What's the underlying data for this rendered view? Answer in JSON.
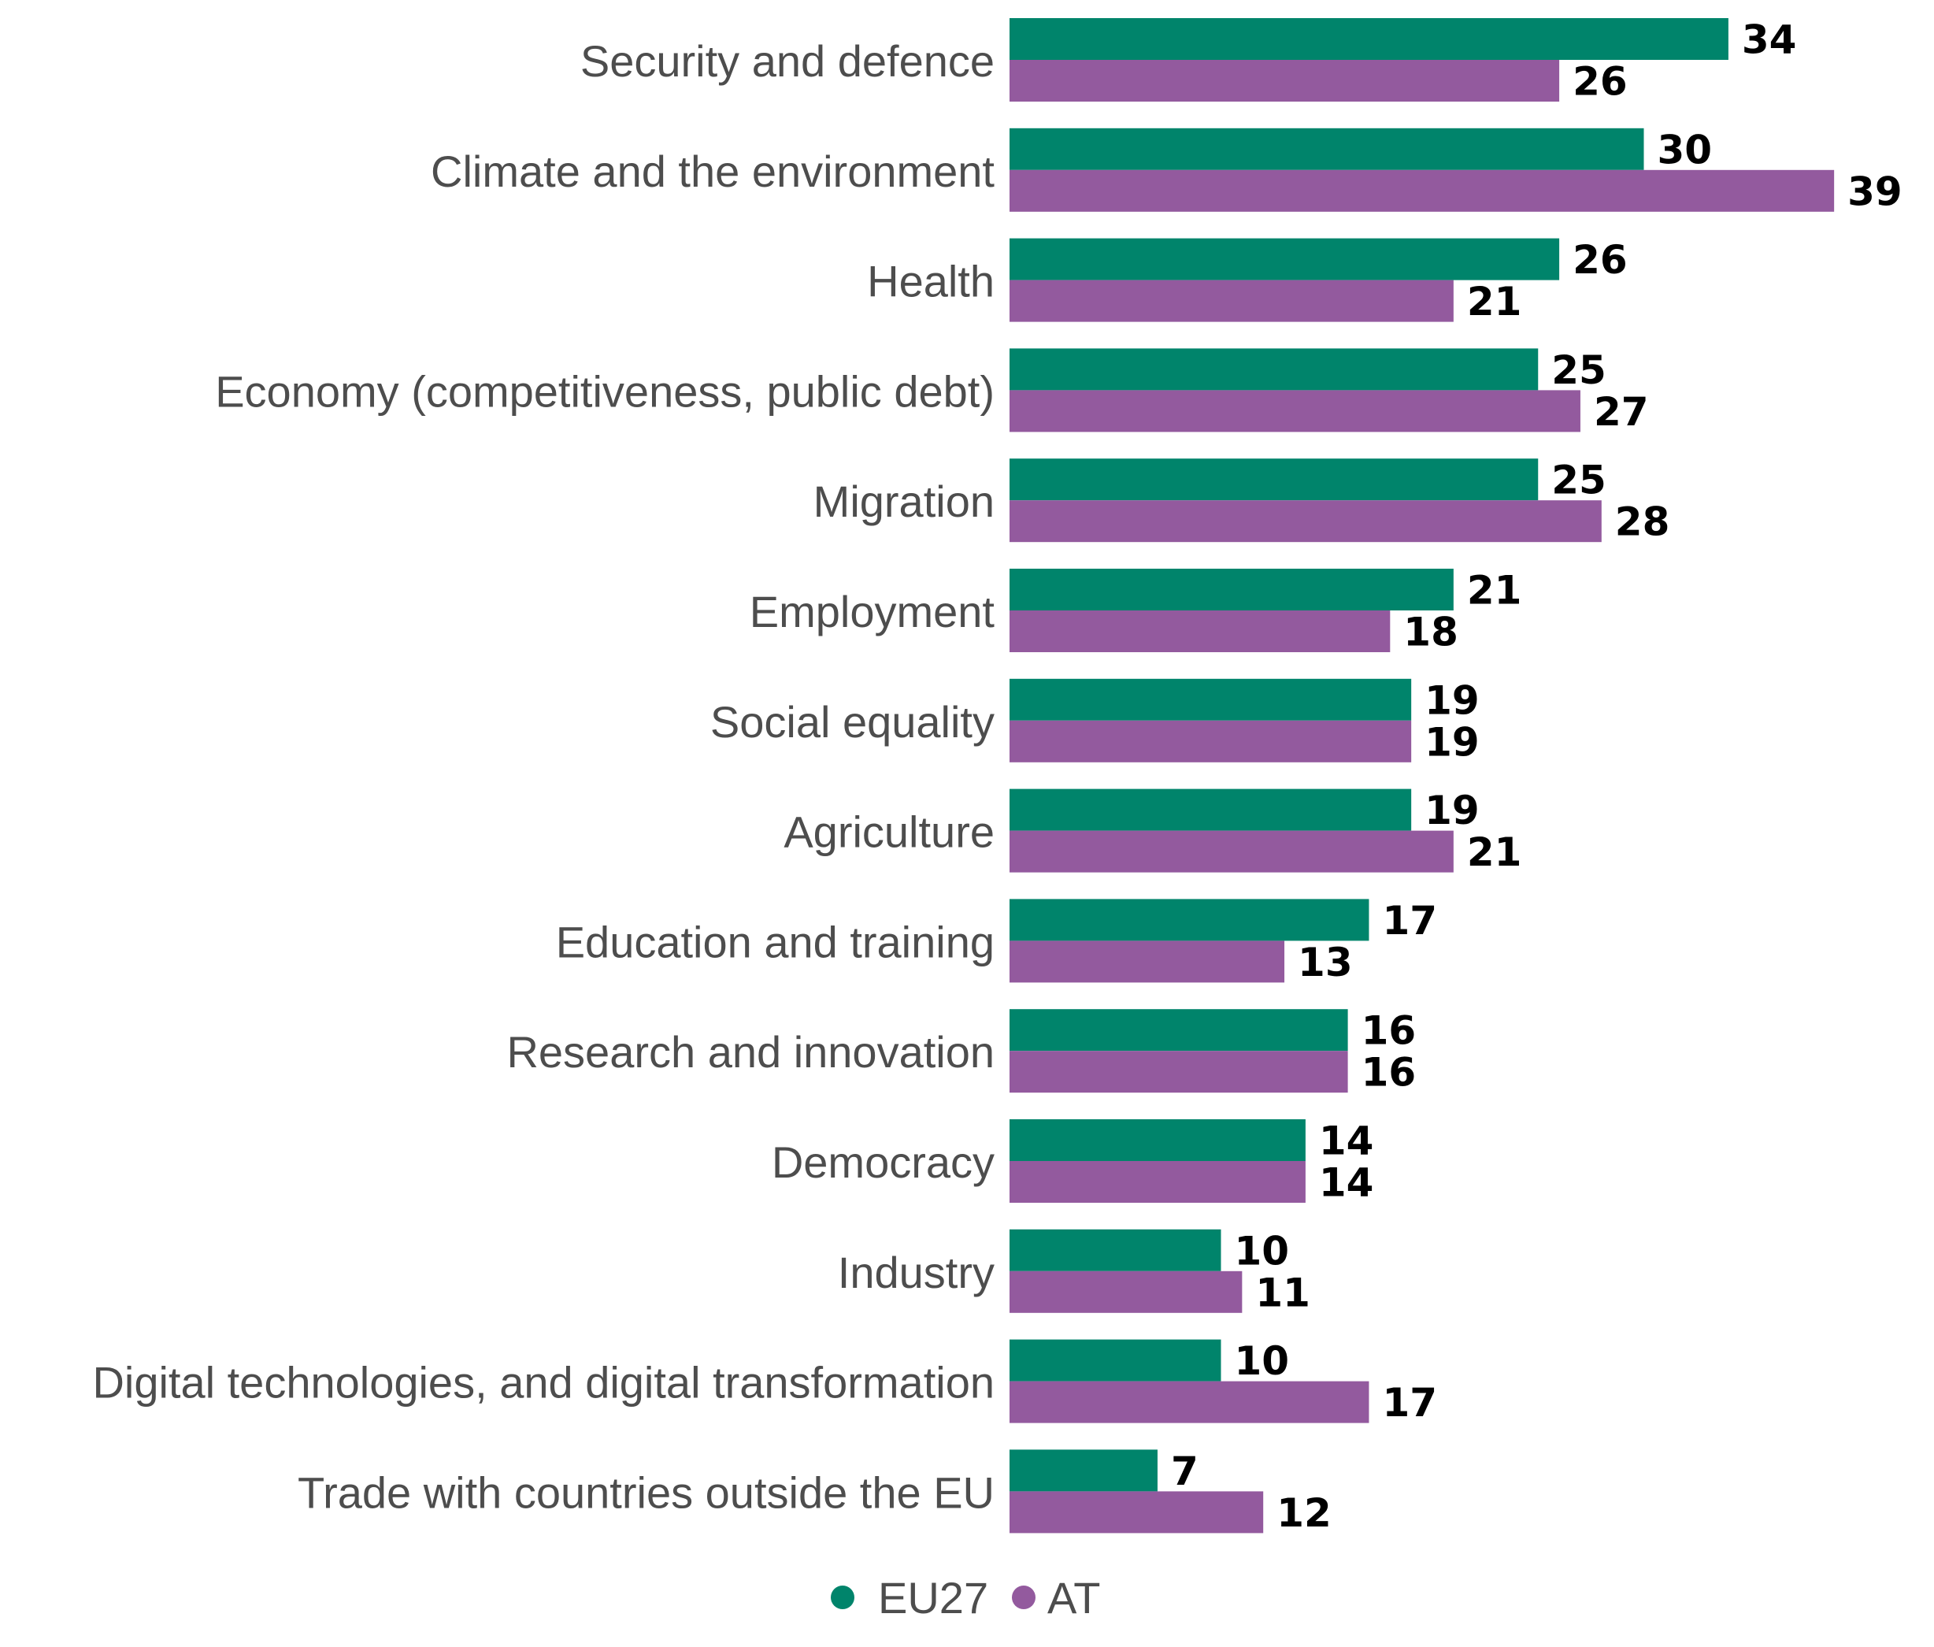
{
  "chart_data": {
    "type": "bar",
    "orientation": "horizontal",
    "categories": [
      "Security and defence",
      "Climate and the environment",
      "Health",
      "Economy (competitiveness, public debt)",
      "Migration",
      "Employment",
      "Social equality",
      "Agriculture",
      "Education and training",
      "Research and innovation",
      "Democracy",
      "Industry",
      "Digital technologies, and digital transformation",
      "Trade with countries outside the EU"
    ],
    "series": [
      {
        "name": "EU27",
        "color": "#00846b",
        "values": [
          34,
          30,
          26,
          25,
          25,
          21,
          19,
          19,
          17,
          16,
          14,
          10,
          10,
          7
        ]
      },
      {
        "name": "AT",
        "color": "#935a9e",
        "values": [
          26,
          39,
          21,
          27,
          28,
          18,
          19,
          21,
          13,
          16,
          14,
          11,
          17,
          12
        ]
      }
    ],
    "xlim": [
      0,
      39
    ],
    "grid": false,
    "legend_position": "bottom-center",
    "data_labels": true
  }
}
